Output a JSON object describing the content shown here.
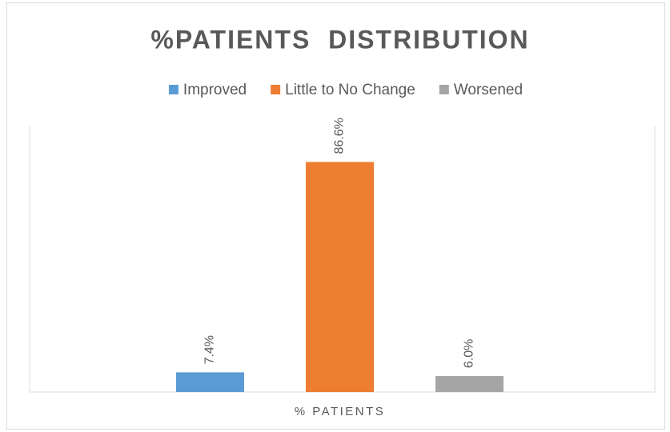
{
  "chart_data": {
    "type": "bar",
    "title": "%PATIENTS  DISTRIBUTION",
    "categories": [
      "% PATIENTS"
    ],
    "series": [
      {
        "name": "Improved",
        "color": "#5b9bd5",
        "values": [
          7.4
        ],
        "value_labels": [
          "7.4%"
        ]
      },
      {
        "name": "Little to No Change",
        "color": "#ed7d31",
        "values": [
          86.6
        ],
        "value_labels": [
          "86.6%"
        ]
      },
      {
        "name": "Worsened",
        "color": "#a5a5a5",
        "values": [
          6.0
        ],
        "value_labels": [
          "6.0%"
        ]
      }
    ],
    "ylim": [
      0,
      100
    ],
    "legend": "top"
  }
}
